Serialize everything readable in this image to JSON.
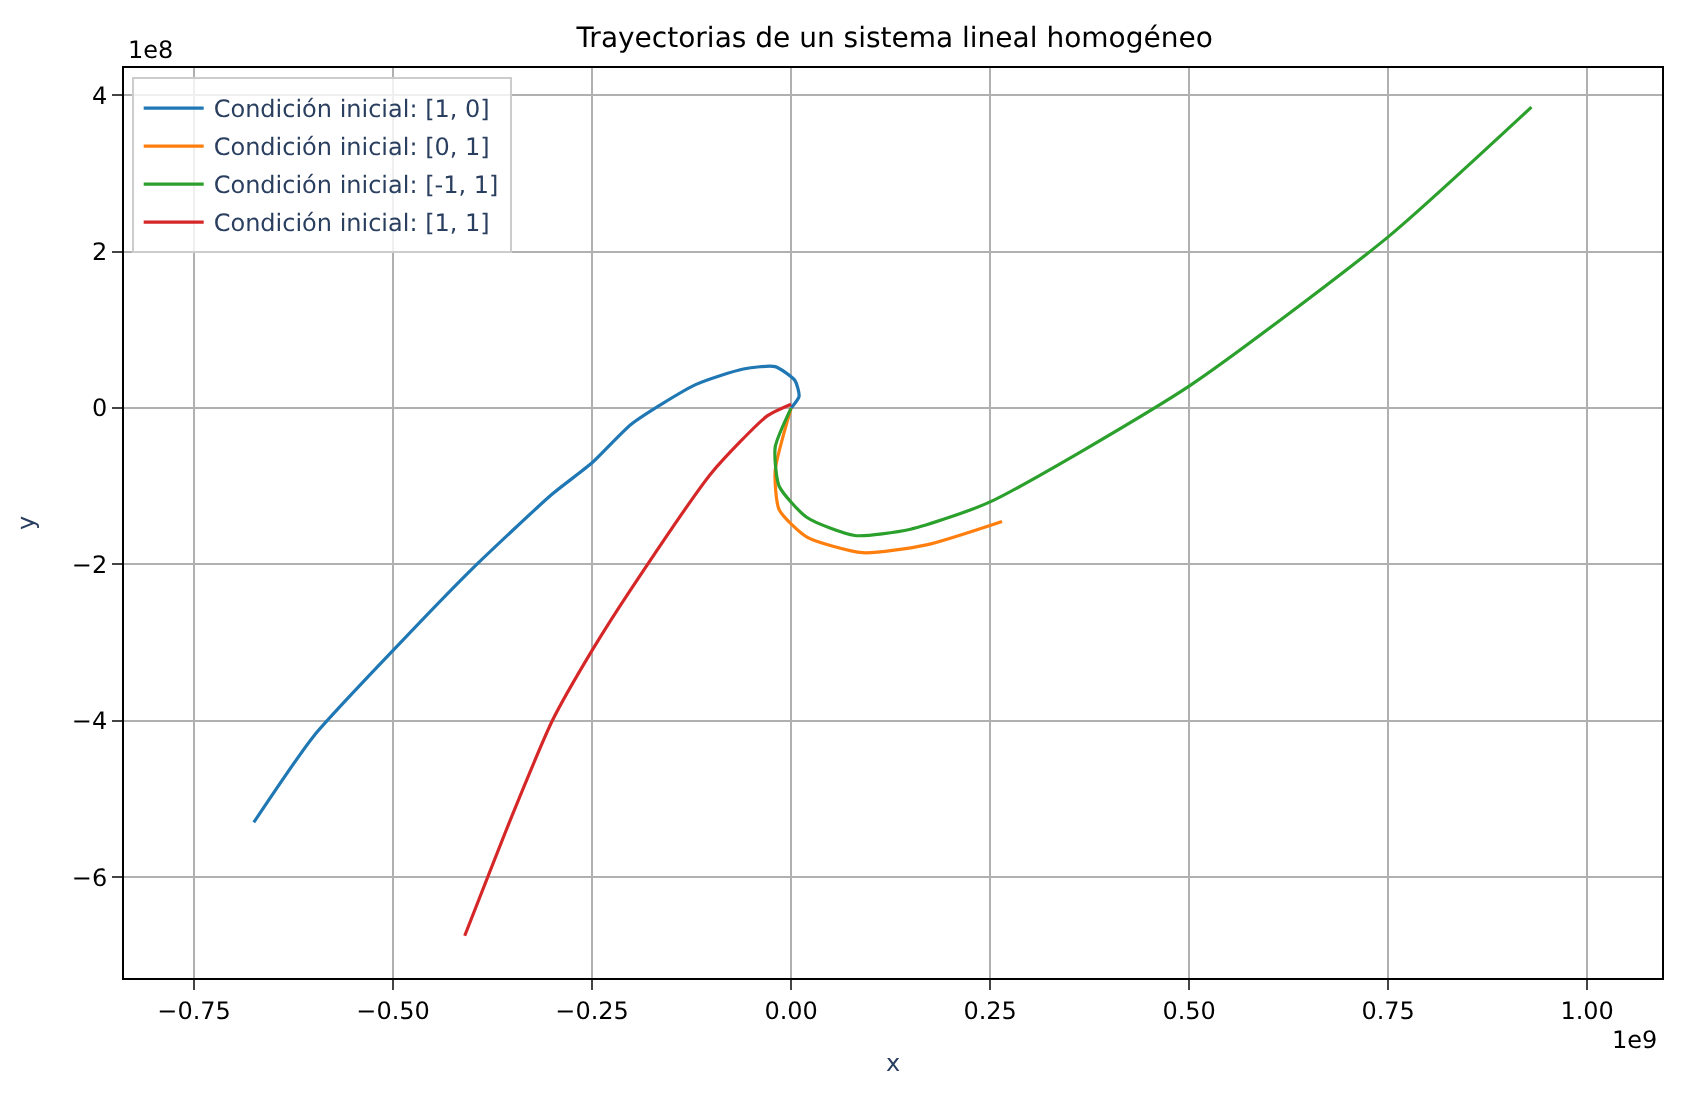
{
  "chart_data": {
    "type": "line",
    "title": "Trayectorias de un sistema lineal homogéneo",
    "xlabel": "x",
    "ylabel": "y",
    "xlim": [
      -0.838,
      1.094
    ],
    "ylim": [
      -7.29,
      4.35
    ],
    "xticks": [
      {
        "value": -0.75,
        "label": "−0.75"
      },
      {
        "value": -0.5,
        "label": "−0.50"
      },
      {
        "value": -0.25,
        "label": "−0.25"
      },
      {
        "value": 0,
        "label": "0.00"
      },
      {
        "value": 0.25,
        "label": "0.25"
      },
      {
        "value": 0.5,
        "label": "0.50"
      },
      {
        "value": 0.75,
        "label": "0.75"
      },
      {
        "value": 1,
        "label": "1.00"
      }
    ],
    "yticks": [
      {
        "value": -6,
        "label": "−6"
      },
      {
        "value": -4,
        "label": "−4"
      },
      {
        "value": -2,
        "label": "−2"
      },
      0,
      2,
      4
    ],
    "annotations": [
      "1e9",
      "1e8"
    ],
    "grid": true,
    "legend": "top left",
    "series": [
      {
        "name": "Condición inicial: [1, 0]",
        "color": "#1f77b4",
        "x": [
          0,
          0.01,
          0.005,
          -0.02,
          -0.06,
          -0.12,
          -0.2,
          -0.25,
          -0.3,
          -0.4,
          -0.5,
          -0.6,
          -0.675
        ],
        "values": [
          0,
          0.15,
          0.35,
          0.53,
          0.5,
          0.3,
          -0.2,
          -0.7,
          -1.1,
          -2.05,
          -3.1,
          -4.2,
          -5.3
        ]
      },
      {
        "name": "Condición inicial: [0, 1]",
        "color": "#ff7f0e",
        "x": [
          0,
          -0.02,
          -0.015,
          0.02,
          0.09,
          0.17,
          0.265
        ],
        "values": [
          0,
          -0.8,
          -1.3,
          -1.65,
          -1.85,
          -1.75,
          -1.45
        ]
      },
      {
        "name": "Condición inicial: [-1, 1]",
        "color": "#2ca02c",
        "x": [
          0,
          -0.02,
          -0.015,
          0.02,
          0.08,
          0.15,
          0.25,
          0.5,
          0.75,
          0.93
        ],
        "values": [
          0,
          -0.5,
          -1.0,
          -1.4,
          -1.63,
          -1.55,
          -1.2,
          0.28,
          2.19,
          3.85
        ]
      },
      {
        "name": "Condición inicial: [1, 1]",
        "color": "#d62728",
        "x": [
          0,
          -0.03,
          -0.1,
          -0.2,
          -0.25,
          -0.3,
          -0.35,
          -0.41
        ],
        "values": [
          0.05,
          -0.1,
          -0.83,
          -2.3,
          -3.1,
          -4.0,
          -5.2,
          -6.75
        ]
      }
    ]
  }
}
